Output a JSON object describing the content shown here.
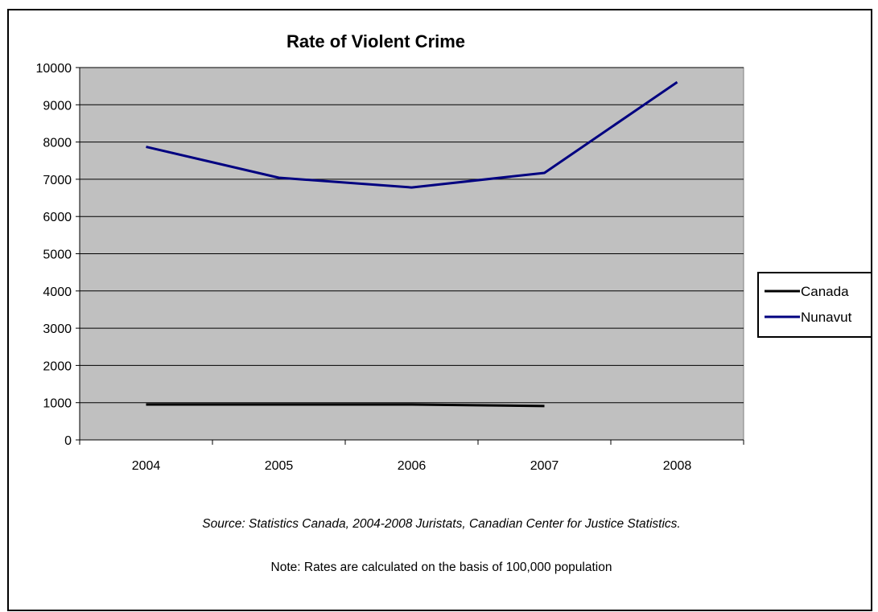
{
  "chart_data": {
    "type": "line",
    "title": "Rate of Violent Crime",
    "categories": [
      "2004",
      "2005",
      "2006",
      "2007",
      "2008"
    ],
    "y_ticks": [
      "0",
      "1000",
      "2000",
      "3000",
      "4000",
      "5000",
      "6000",
      "7000",
      "8000",
      "9000",
      "10000"
    ],
    "ylim": [
      0,
      10000
    ],
    "grid": true,
    "legend_position": "right",
    "series": [
      {
        "name": "Canada",
        "values": [
          950,
          950,
          950,
          910,
          null
        ],
        "color": "#000000"
      },
      {
        "name": "Nunavut",
        "values": [
          7870,
          7040,
          6780,
          7170,
          9610
        ],
        "color": "#000080"
      }
    ],
    "plot_background": "#c0c0c0",
    "source": "Source: Statistics Canada, 2004-2008 Juristats, Canadian Center for Justice Statistics.",
    "note": "Note: Rates are calculated on the basis of 100,000 population"
  }
}
